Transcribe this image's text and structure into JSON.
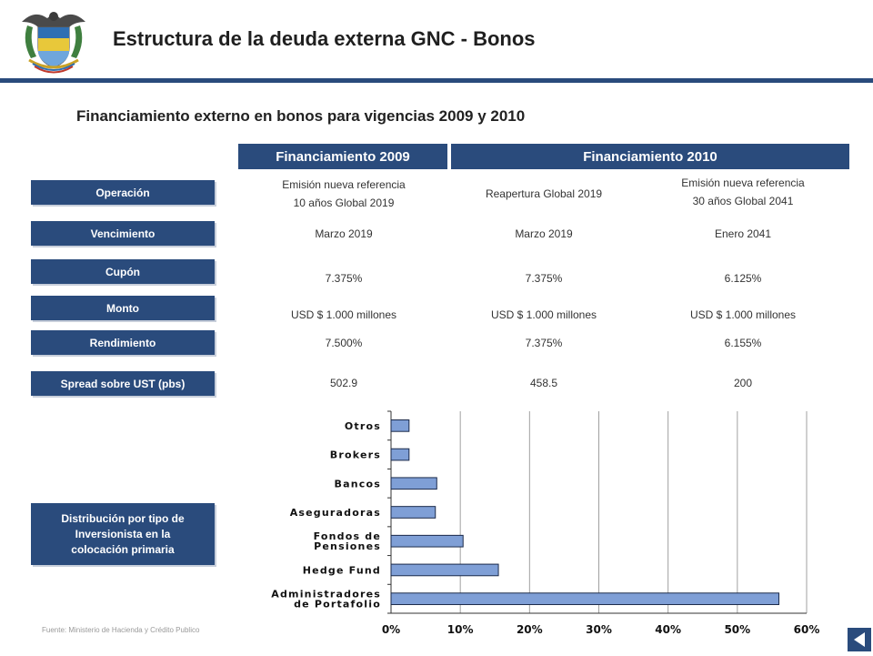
{
  "title": "Estructura de la deuda externa GNC - Bonos",
  "subtitle": "Financiamiento externo en bonos para vigencias 2009 y 2010",
  "headers": {
    "h2009": "Financiamiento 2009",
    "h2010": "Financiamiento 2010"
  },
  "rows": {
    "operacion": {
      "label": "Operación",
      "c1a": "Emisión nueva referencia",
      "c1b": "10 años Global 2019",
      "c2": "Reapertura Global 2019",
      "c3a": "Emisión nueva referencia",
      "c3b": "30 años Global 2041"
    },
    "vencimiento": {
      "label": "Vencimiento",
      "c1": "Marzo 2019",
      "c2": "Marzo 2019",
      "c3": "Enero 2041"
    },
    "cupon": {
      "label": "Cupón",
      "c1": "7.375%",
      "c2": "7.375%",
      "c3": "6.125%"
    },
    "monto": {
      "label": "Monto",
      "c1": "USD $ 1.000 millones",
      "c2": "USD $ 1.000 millones",
      "c3": "USD $ 1.000 millones"
    },
    "rendimiento": {
      "label": "Rendimiento",
      "c1": "7.500%",
      "c2": "7.375%",
      "c3": "6.155%"
    },
    "spread": {
      "label": "Spread sobre UST (pbs)",
      "c1": "502.9",
      "c2": "458.5",
      "c3": "200"
    }
  },
  "distribution_label": [
    "Distribución por tipo de",
    "Inversionista en la",
    "colocación primaria"
  ],
  "source": "Fuente: Ministerio de Hacienda y Crédito Publico",
  "colors": {
    "navy": "#2a4b7c",
    "bar": "#7f9fd6"
  },
  "chart_data": {
    "type": "bar",
    "orientation": "horizontal",
    "categories": [
      "Otros",
      "Brokers",
      "Bancos",
      "Aseguradoras",
      "Fondos de Pensiones",
      "Hedge Fund",
      "Administradores de Portafolio"
    ],
    "category_lines": [
      [
        "Otros"
      ],
      [
        "Brokers"
      ],
      [
        "Bancos"
      ],
      [
        "Aseguradoras"
      ],
      [
        "Fondos de",
        "Pensiones"
      ],
      [
        "Hedge Fund"
      ],
      [
        "Administradores",
        "de Portafolio"
      ]
    ],
    "values": [
      0.026,
      0.026,
      0.066,
      0.064,
      0.104,
      0.155,
      0.56
    ],
    "xlim": [
      0,
      0.6
    ],
    "ticks": [
      0,
      0.1,
      0.2,
      0.3,
      0.4,
      0.5,
      0.6
    ],
    "tick_labels": [
      "0%",
      "10%",
      "20%",
      "30%",
      "40%",
      "50%",
      "60%"
    ],
    "grid": true
  }
}
